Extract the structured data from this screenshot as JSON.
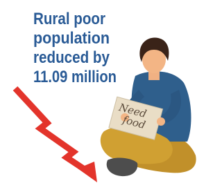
{
  "headline": {
    "lines": [
      "Rural poor",
      "population",
      "reduced by",
      "11.09 million"
    ]
  },
  "sign": {
    "lines": [
      "Need",
      "food"
    ]
  }
}
